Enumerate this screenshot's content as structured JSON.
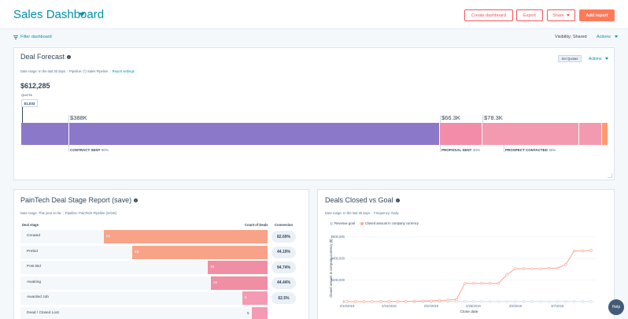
{
  "header": {
    "title": "Sales Dashboard",
    "buttons": {
      "create": "Create dashboard",
      "export": "Export",
      "share": "Share",
      "add": "Add report"
    }
  },
  "filterbar": {
    "filter_label": "Filter dashboard",
    "visibility_label": "Visibility:",
    "visibility_value": "Shared",
    "actions_label": "Actions"
  },
  "forecast": {
    "title": "Deal Forecast",
    "date_range": "Date range: In the last 30 days",
    "pipeline": "Pipeline: (*) Sales Pipeline",
    "report_settings": "Report settings",
    "set_quotas": "Set Quotas",
    "actions_label": "Actions",
    "total": "$612,285",
    "quota_label": "QUOTA",
    "quota_value": "$1,033",
    "segments": [
      {
        "amount": "$388K",
        "stage": "CONTRACT SENT",
        "pct": "90%",
        "color": "#8c78c8"
      },
      {
        "amount": "$66.3K",
        "stage": "PROPOSAL SENT",
        "pct": "40%",
        "color": "#f28ca8"
      },
      {
        "amount": "$78.3K",
        "stage": "PROSPECT CONTACTED",
        "pct": "30%",
        "color": "#f49ab0"
      },
      {
        "color": "#f49ab0"
      },
      {
        "color": "#fd9a6e"
      }
    ]
  },
  "stage_report": {
    "title": "PainTech Deal Stage Report (save)",
    "date_range": "Date range: This year so far",
    "pipeline": "Pipeline: PainTech Pipeline (SAVE)",
    "col_stage": "Deal stage",
    "col_count": "Count of Deals",
    "col_conversion": "Conversion",
    "rows": [
      {
        "stage": "Created",
        "count": "52",
        "value": 52,
        "conversion": "82.69%",
        "color": "#f8a287"
      },
      {
        "stage": "Prebid",
        "count": "43",
        "value": 43,
        "conversion": "44.19%",
        "color": "#f8a287"
      },
      {
        "stage": "Post Bid",
        "count": "19",
        "value": 19,
        "conversion": "94.74%",
        "color": "#f08ea4"
      },
      {
        "stage": "Awaiting",
        "count": "18",
        "value": 18,
        "conversion": "44.44%",
        "color": "#f08ea4"
      },
      {
        "stage": "Awarded Job",
        "count": "8",
        "value": 8,
        "conversion": "62.5%",
        "color": "#f49ab4"
      },
      {
        "stage": "Dead / Closed Lost",
        "count": "5",
        "value": 5,
        "conversion": "",
        "color": "#f49ab4"
      }
    ]
  },
  "deals_closed": {
    "title": "Deals Closed vs Goal",
    "date_range": "Date range: In the last 30 days",
    "frequency": "Frequency: Daily"
  },
  "chart_data": {
    "type": "line",
    "title": "Deals Closed vs Goal",
    "xlabel": "Close date",
    "ylabel": "Closed amount in company currency ($)",
    "ylim": [
      0,
      620000
    ],
    "yticks": [
      0,
      200000,
      400000,
      600000
    ],
    "ytick_labels": [
      "0",
      "$200,000",
      "$400,000",
      "$600,000"
    ],
    "xtick_labels": [
      "2/10/2019",
      "2/15/2019",
      "2/20/2019",
      "2/25/2019",
      "3/3/2019",
      "3/7/2019"
    ],
    "xtick_index": [
      0,
      5,
      10,
      15,
      20,
      25
    ],
    "series": [
      {
        "name": "Revenue goal",
        "color": "#cbd6e2",
        "values": [
          1033,
          1033,
          1033,
          1033,
          1033,
          1033,
          1033,
          1033,
          1033,
          1033,
          1033,
          1033,
          1033,
          1033,
          1033,
          1033,
          1033,
          1033,
          1033,
          1033,
          1033,
          1033,
          1033,
          1033,
          1033,
          1033,
          1033,
          1033,
          1033,
          1033
        ]
      },
      {
        "name": "Closed amount in company currency",
        "color": "#fea58e",
        "values": [
          0,
          0,
          0,
          0,
          1000,
          2000,
          2000,
          2000,
          5000,
          6000,
          8000,
          10000,
          15000,
          20000,
          170000,
          170000,
          170000,
          170000,
          170000,
          250000,
          305000,
          305000,
          305000,
          305000,
          310000,
          310000,
          345000,
          470000,
          470000,
          475000
        ]
      }
    ]
  },
  "help": {
    "label": "Help"
  }
}
